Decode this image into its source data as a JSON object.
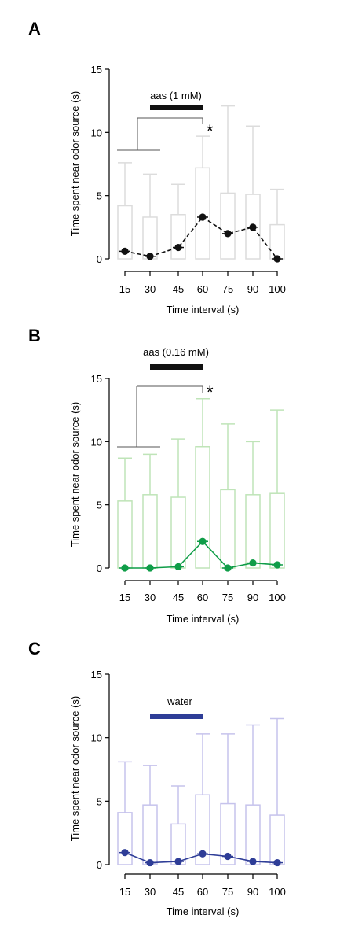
{
  "chart_data": [
    {
      "type": "bar",
      "panel_label": "A",
      "categories": [
        "15",
        "30",
        "45",
        "60",
        "75",
        "90",
        "100"
      ],
      "xlabel": "Time interval (s)",
      "ylabel": "Time spent near odor source (s)",
      "ylim": [
        0,
        15
      ],
      "yticks": [
        0,
        5,
        10,
        15
      ],
      "treatment_label": "aas (1 mM)",
      "treatment_categories": [
        "30",
        "60"
      ],
      "significance_marker": "*",
      "colors": {
        "box": "#dcdcdc",
        "line": "#111111"
      },
      "series": [
        {
          "name": "mean",
          "values": [
            0.6,
            0.2,
            0.9,
            3.3,
            2.0,
            2.5,
            0.0
          ]
        }
      ],
      "box_top": [
        4.2,
        3.3,
        3.5,
        7.2,
        5.2,
        5.1,
        2.7
      ],
      "whisker_top": [
        7.6,
        6.7,
        5.9,
        9.7,
        12.1,
        10.5,
        5.5
      ]
    },
    {
      "type": "bar",
      "panel_label": "B",
      "categories": [
        "15",
        "30",
        "45",
        "60",
        "75",
        "90",
        "100"
      ],
      "xlabel": "Time interval (s)",
      "ylabel": "Time spent near odor source (s)",
      "ylim": [
        0,
        15
      ],
      "yticks": [
        0,
        5,
        10,
        15
      ],
      "treatment_label": "aas (0.16 mM)",
      "treatment_categories": [
        "30",
        "60"
      ],
      "significance_marker": "*",
      "colors": {
        "box": "#bfe4b8",
        "line": "#0f9d48"
      },
      "series": [
        {
          "name": "mean",
          "values": [
            0.0,
            0.0,
            0.1,
            2.1,
            0.0,
            0.4,
            0.25
          ]
        }
      ],
      "box_top": [
        5.3,
        5.8,
        5.6,
        9.6,
        6.2,
        5.8,
        5.9
      ],
      "whisker_top": [
        8.7,
        9.0,
        10.2,
        13.4,
        11.4,
        10.0,
        12.5
      ]
    },
    {
      "type": "bar",
      "panel_label": "C",
      "categories": [
        "15",
        "30",
        "45",
        "60",
        "75",
        "90",
        "100"
      ],
      "xlabel": "Time interval (s)",
      "ylabel": "Time spent near odor source (s)",
      "ylim": [
        0,
        15
      ],
      "yticks": [
        0,
        5,
        10,
        15
      ],
      "treatment_label": "water",
      "treatment_categories": [
        "30",
        "60"
      ],
      "significance_marker": "",
      "colors": {
        "box": "#c6c3ec",
        "line": "#2e3d97"
      },
      "series": [
        {
          "name": "mean",
          "values": [
            0.95,
            0.15,
            0.25,
            0.85,
            0.65,
            0.25,
            0.15
          ]
        }
      ],
      "box_top": [
        4.1,
        4.7,
        3.2,
        5.5,
        4.8,
        4.7,
        3.9
      ],
      "whisker_top": [
        8.1,
        7.8,
        6.2,
        10.3,
        10.3,
        11.0,
        11.5
      ]
    }
  ]
}
